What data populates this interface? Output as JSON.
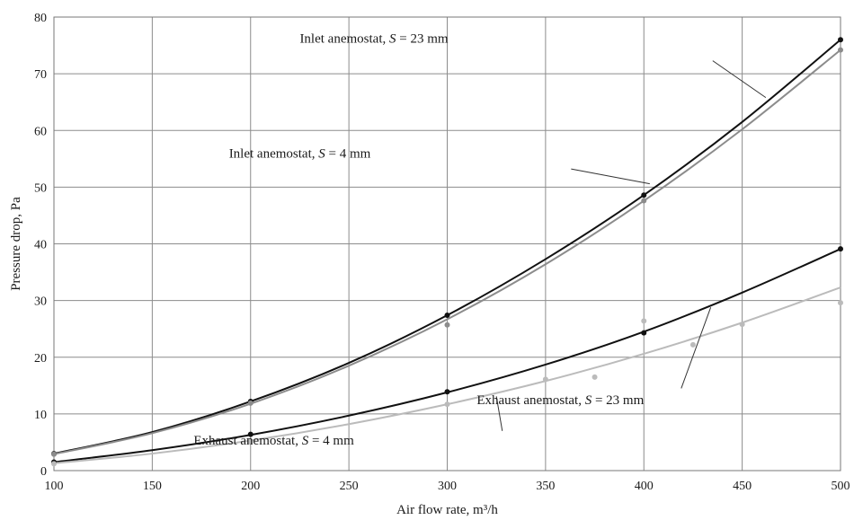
{
  "chart_data": {
    "type": "line",
    "xlabel": "Air flow rate, m³/h",
    "ylabel": "Pressure drop, Pa",
    "xlim": [
      100,
      500
    ],
    "ylim": [
      0,
      80
    ],
    "x_ticks": [
      100,
      150,
      200,
      250,
      300,
      350,
      400,
      450,
      500
    ],
    "y_ticks": [
      0,
      10,
      20,
      30,
      40,
      50,
      60,
      70,
      80
    ],
    "x_tick_labels": [
      "100",
      "150",
      "200",
      "250",
      "300",
      "350",
      "400",
      "450",
      "500"
    ],
    "y_tick_labels": [
      "0",
      "10",
      "20",
      "30",
      "40",
      "50",
      "60",
      "70",
      "80"
    ],
    "grid": true,
    "legend": "none",
    "series": [
      {
        "name": "Inlet anemostat, S = 23 mm",
        "color": "#111111",
        "fit": [
          [
            100,
            3.0
          ],
          [
            150,
            6.8
          ],
          [
            200,
            12.2
          ],
          [
            250,
            19.0
          ],
          [
            300,
            27.4
          ],
          [
            350,
            37.3
          ],
          [
            400,
            48.6
          ],
          [
            450,
            61.5
          ],
          [
            500,
            76.0
          ]
        ],
        "points": [
          [
            100,
            3.0
          ],
          [
            200,
            12.2
          ],
          [
            300,
            27.4
          ],
          [
            400,
            48.6
          ],
          [
            500,
            76.0
          ]
        ]
      },
      {
        "name": "Inlet anemostat, S = 4 mm",
        "color": "#8c8c8c",
        "fit": [
          [
            100,
            2.9
          ],
          [
            150,
            6.6
          ],
          [
            200,
            11.8
          ],
          [
            250,
            18.5
          ],
          [
            300,
            26.7
          ],
          [
            350,
            36.4
          ],
          [
            400,
            47.6
          ],
          [
            450,
            60.2
          ],
          [
            500,
            74.2
          ]
        ],
        "points": [
          [
            100,
            2.9
          ],
          [
            200,
            11.9
          ],
          [
            300,
            25.7
          ],
          [
            400,
            47.6
          ],
          [
            500,
            74.2
          ]
        ]
      },
      {
        "name": "Exhaust anemostat, S = 23 mm",
        "color": "#111111",
        "fit": [
          [
            100,
            1.5
          ],
          [
            150,
            3.6
          ],
          [
            200,
            6.3
          ],
          [
            250,
            9.7
          ],
          [
            300,
            13.8
          ],
          [
            350,
            18.7
          ],
          [
            400,
            24.5
          ],
          [
            450,
            31.4
          ],
          [
            500,
            39.1
          ]
        ],
        "points": [
          [
            100,
            1.5
          ],
          [
            200,
            6.4
          ],
          [
            300,
            13.9
          ],
          [
            400,
            24.3
          ],
          [
            500,
            39.1
          ]
        ]
      },
      {
        "name": "Exhaust anemostat, S = 4 mm",
        "color": "#bbbbbb",
        "fit": [
          [
            100,
            1.3
          ],
          [
            150,
            3.0
          ],
          [
            200,
            5.3
          ],
          [
            250,
            8.2
          ],
          [
            300,
            11.7
          ],
          [
            350,
            15.8
          ],
          [
            400,
            20.6
          ],
          [
            450,
            26.1
          ],
          [
            500,
            32.3
          ]
        ],
        "points": [
          [
            100,
            1.2
          ],
          [
            200,
            5.1
          ],
          [
            300,
            11.7
          ],
          [
            350,
            16.1
          ],
          [
            375,
            16.5
          ],
          [
            400,
            26.4
          ],
          [
            425,
            22.2
          ],
          [
            450,
            25.8
          ],
          [
            500,
            29.6
          ]
        ]
      }
    ],
    "annotations": [
      {
        "label_prefix": "Inlet anemostat, ",
        "label_var": "S",
        "label_suffix": " = 23 mm",
        "text_at": [
          225,
          75.5
        ],
        "leader": [
          [
            435,
            72.3
          ],
          [
            462,
            65.8
          ]
        ]
      },
      {
        "label_prefix": "Inlet anemostat, ",
        "label_var": "S",
        "label_suffix": " = 4 mm",
        "text_at": [
          189,
          55.2
        ],
        "leader": [
          [
            363,
            53.2
          ],
          [
            403,
            50.6
          ]
        ]
      },
      {
        "label_prefix": "Exhaust anemostat, ",
        "label_var": "S",
        "label_suffix": " = 23 mm",
        "text_at": [
          315,
          11.7
        ],
        "leader": [
          [
            419,
            14.5
          ],
          [
            434,
            28.8
          ]
        ]
      },
      {
        "label_prefix": "Exhaust anemostat, ",
        "label_var": "S",
        "label_suffix": " = 4 mm",
        "text_at": [
          171,
          4.6
        ],
        "leader": [
          [
            328,
            7.0
          ],
          [
            325,
            13.1
          ]
        ]
      }
    ]
  }
}
